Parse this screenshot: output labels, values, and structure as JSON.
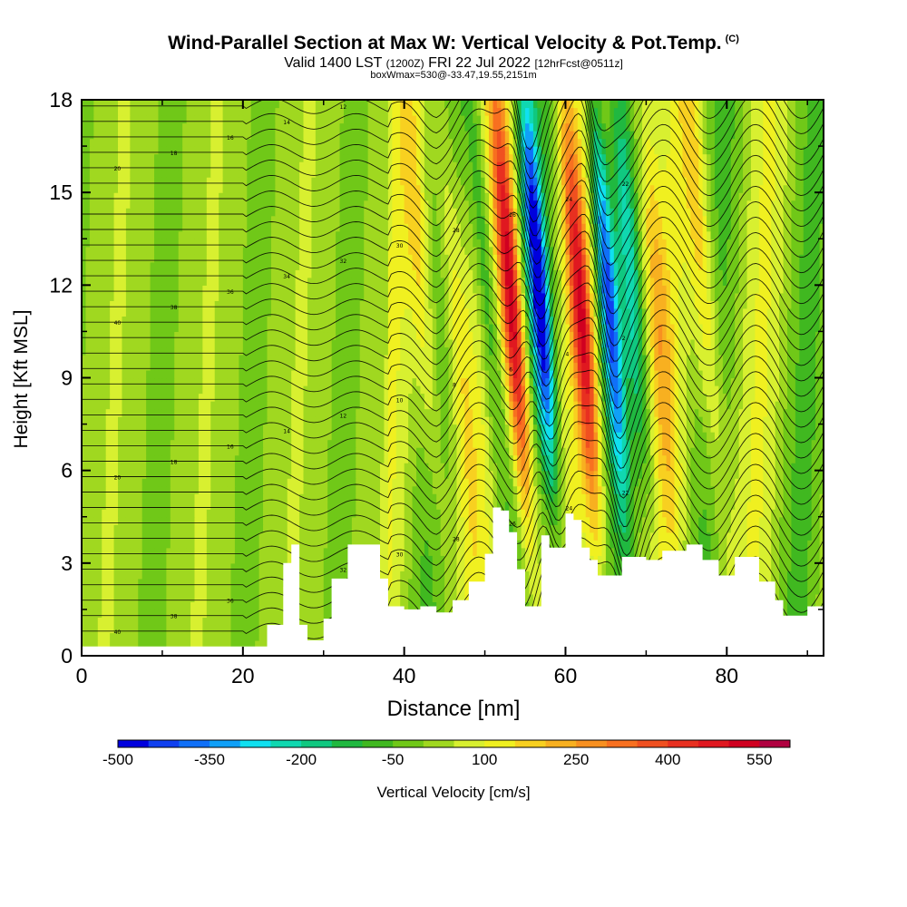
{
  "header": {
    "title": "Wind-Parallel Section at Max W: Vertical Velocity & Pot.Temp.",
    "copyright": "(C)",
    "valid_prefix": "Valid 1400 LST",
    "valid_utc": "(1200Z)",
    "valid_date": "FRI 22 Jul 2022",
    "forecast": "[12hrFcst@0511z]",
    "box_info": "boxWmax=530@-33.47,19.55,2151m"
  },
  "chart_data": {
    "type": "heatmap",
    "xlabel": "Distance [nm]",
    "ylabel": "Height [Kft MSL]",
    "xlim": [
      0,
      92
    ],
    "ylim": [
      0,
      18
    ],
    "x_ticks": [
      0,
      20,
      40,
      60,
      80
    ],
    "y_ticks": [
      0,
      3,
      6,
      9,
      12,
      15,
      18
    ],
    "colorbar": {
      "label": "Vertical Velocity [cm/s]",
      "tick_labels": [
        "-500",
        "-350",
        "-200",
        "-50",
        "100",
        "250",
        "400",
        "550"
      ],
      "tick_values": [
        -500,
        -350,
        -200,
        -50,
        100,
        250,
        400,
        550
      ],
      "range": [
        -500,
        600
      ],
      "step": 50,
      "colors": [
        "#0000dd",
        "#1040f0",
        "#1070f8",
        "#10a0f8",
        "#10e0f0",
        "#10d8b0",
        "#10c880",
        "#20b840",
        "#40b820",
        "#70c818",
        "#a0d820",
        "#d8f030",
        "#f0f020",
        "#f8d020",
        "#f8b020",
        "#f89020",
        "#f87020",
        "#f05020",
        "#e83020",
        "#e01820",
        "#d00020",
        "#b00040"
      ]
    },
    "field": {
      "description_values_cm_s": {
        "background": 20,
        "updraft_cores": [
          {
            "x_center_nm": 54,
            "peak": 530
          },
          {
            "x_center_nm": 62.5,
            "peak": 430
          }
        ],
        "downdraft_cores": [
          {
            "x_center_nm": 57.5,
            "peak": -500
          },
          {
            "x_center_nm": 66,
            "peak": -420
          }
        ]
      }
    },
    "terrain_kft": {
      "x": [
        0,
        10,
        19,
        21,
        23,
        25,
        26,
        27,
        28,
        30,
        31,
        33,
        35,
        37,
        38,
        40,
        42,
        44,
        46,
        48,
        50,
        51,
        52,
        53,
        54,
        55,
        56,
        57,
        58,
        60,
        61,
        62,
        63,
        64,
        65,
        67,
        70,
        72,
        75,
        77,
        79,
        81,
        83,
        84,
        86,
        87,
        88,
        90,
        92
      ],
      "y": [
        0.3,
        0.3,
        0.3,
        0.3,
        1.0,
        3.0,
        3.6,
        1.0,
        0.5,
        1.2,
        2.5,
        3.6,
        3.6,
        2.5,
        1.6,
        1.5,
        1.6,
        1.4,
        1.8,
        2.4,
        3.3,
        4.8,
        4.7,
        4.0,
        2.8,
        1.6,
        1.6,
        3.9,
        3.5,
        4.6,
        4.4,
        3.5,
        3.1,
        2.6,
        2.6,
        3.2,
        3.1,
        3.4,
        3.6,
        3.1,
        2.6,
        3.2,
        3.2,
        2.4,
        1.8,
        1.3,
        1.3,
        1.6,
        1.6
      ]
    },
    "theta_contours": {
      "levels_count": 36,
      "labels": [
        "40",
        "38",
        "36",
        "34",
        "32",
        "30",
        "28",
        "26",
        "24",
        "22",
        "20",
        "18",
        "16",
        "14",
        "12",
        "10",
        "8",
        "6",
        "4",
        "2",
        "40",
        "38",
        "36",
        "34",
        "32",
        "30",
        "28",
        "26",
        "24",
        "22",
        "20",
        "18",
        "16",
        "14",
        "12",
        "10"
      ]
    }
  }
}
